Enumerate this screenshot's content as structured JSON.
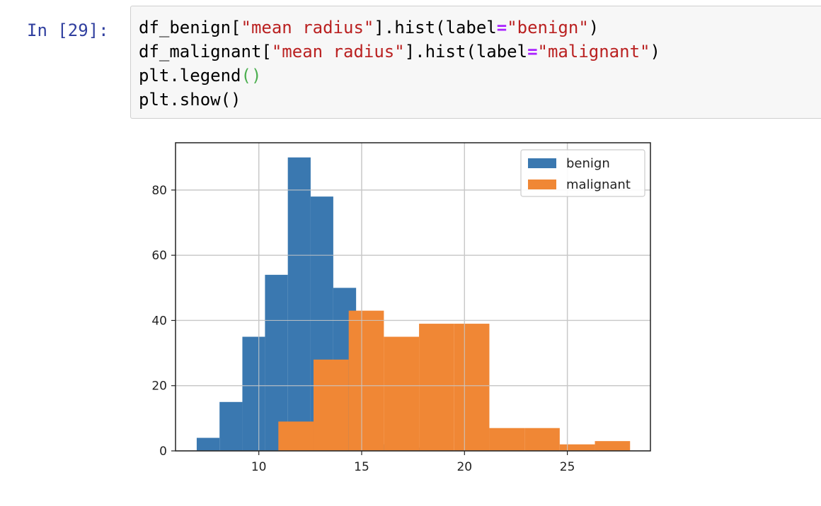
{
  "cell": {
    "prompt": "In [29]:",
    "lines": [
      {
        "var": "df_benign",
        "bracket_open": "[",
        "key": "\"mean radius\"",
        "call": "].hist(label",
        "eq": "=",
        "value": "\"benign\"",
        "close": ")"
      },
      {
        "var": "df_malignant",
        "bracket_open": "[",
        "key": "\"mean radius\"",
        "call": "].hist(label",
        "eq": "=",
        "value": "\"malignant\"",
        "close": ")"
      },
      {
        "text": "plt.legend",
        "parens": "()"
      },
      {
        "text": "plt.show()"
      }
    ]
  },
  "chart_data": {
    "type": "bar",
    "xlim": [
      5.95,
      29.04
    ],
    "ylim": [
      0,
      94.5
    ],
    "xticks": [
      10,
      15,
      20,
      25
    ],
    "yticks": [
      0,
      20,
      40,
      60,
      80
    ],
    "grid": true,
    "legend_position": "top-right",
    "series": [
      {
        "name": "benign",
        "color": "#3a78b0",
        "bins": [
          {
            "x0": 6.98,
            "x1": 8.09,
            "value": 4
          },
          {
            "x0": 8.09,
            "x1": 9.2,
            "value": 15
          },
          {
            "x0": 9.2,
            "x1": 10.3,
            "value": 35
          },
          {
            "x0": 10.3,
            "x1": 11.41,
            "value": 54
          },
          {
            "x0": 11.41,
            "x1": 12.52,
            "value": 90
          },
          {
            "x0": 12.52,
            "x1": 13.62,
            "value": 78
          },
          {
            "x0": 13.62,
            "x1": 14.73,
            "value": 50
          },
          {
            "x0": 14.73,
            "x1": 15.84,
            "value": 18
          },
          {
            "x0": 15.84,
            "x1": 16.94,
            "value": 2
          },
          {
            "x0": 16.94,
            "x1": 18.05,
            "value": 1
          }
        ]
      },
      {
        "name": "malignant",
        "color": "#f08735",
        "bins": [
          {
            "x0": 10.95,
            "x1": 12.66,
            "value": 9
          },
          {
            "x0": 12.66,
            "x1": 14.37,
            "value": 28
          },
          {
            "x0": 14.37,
            "x1": 16.08,
            "value": 43
          },
          {
            "x0": 16.08,
            "x1": 17.79,
            "value": 35
          },
          {
            "x0": 17.79,
            "x1": 19.5,
            "value": 39
          },
          {
            "x0": 19.5,
            "x1": 21.21,
            "value": 39
          },
          {
            "x0": 21.21,
            "x1": 22.92,
            "value": 7
          },
          {
            "x0": 22.92,
            "x1": 24.63,
            "value": 7
          },
          {
            "x0": 24.63,
            "x1": 26.34,
            "value": 2
          },
          {
            "x0": 26.34,
            "x1": 28.05,
            "value": 3
          }
        ]
      }
    ]
  }
}
